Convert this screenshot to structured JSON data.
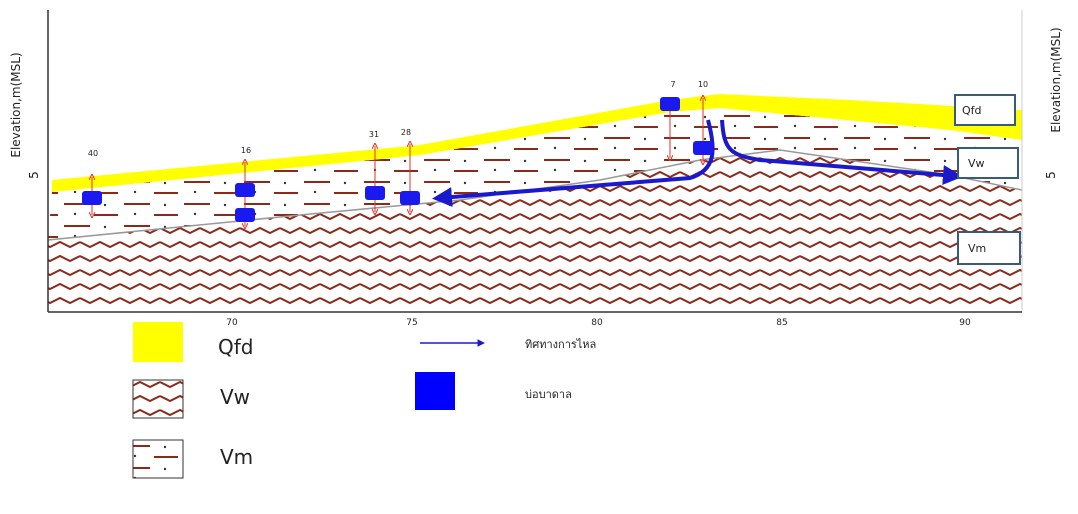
{
  "axes": {
    "y_label_left": "Elevation,m(MSL)",
    "y_label_right": "Elevation,m(MSL)",
    "y_tick_left": "5",
    "y_tick_right": "5",
    "x_ticks": [
      "70",
      "75",
      "80",
      "85",
      "90"
    ]
  },
  "wells": [
    "40",
    "16",
    "31",
    "28",
    "7",
    "10"
  ],
  "layer_labels": [
    "Qfd",
    "Vw",
    "Vm"
  ],
  "legend": [
    "Qfd",
    "Vw",
    "Vm",
    "ทิศทางการไหล",
    "บ่อบาดาล"
  ]
}
